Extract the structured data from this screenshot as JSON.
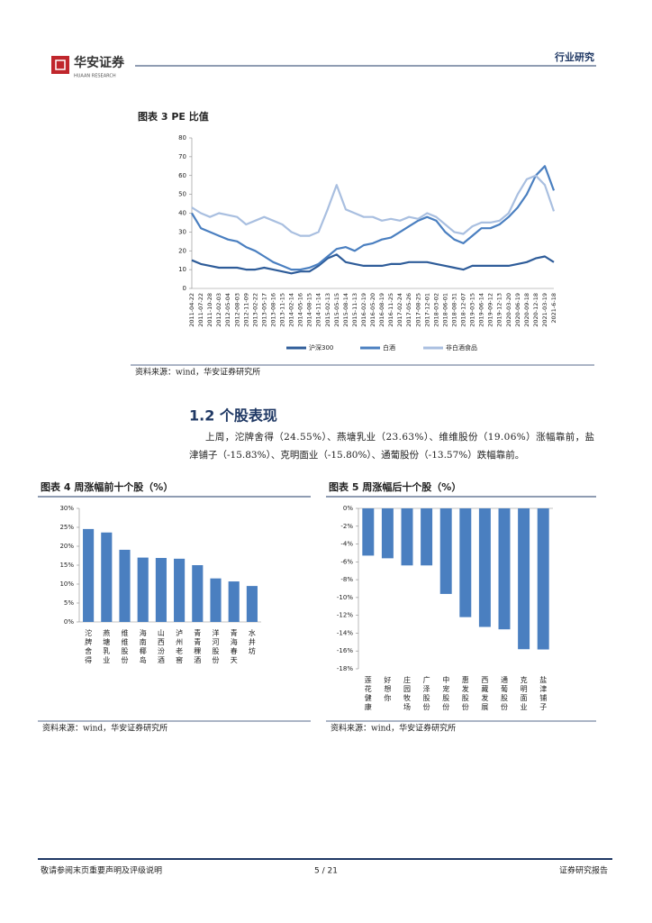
{
  "header": {
    "logo": "华安证券",
    "logo_sub": "HUAAN RESEARCH",
    "section": "行业研究"
  },
  "heading": "1.2 个股表现",
  "paragraph": [
    "上周，沱牌舍得（24.55%）、燕塘乳业（23.63%）、维维股份（19.06%）涨幅靠前，盐",
    "津铺子（-15.83%）、克明面业（-15.80%）、通葡股份（-13.57%）跌幅靠前。"
  ],
  "footer": {
    "left": "敬请参阅末页重要声明及评级说明",
    "page": "5 / 21",
    "right": "证券研究报告"
  },
  "chart_data": [
    {
      "type": "line",
      "title": "图表 3 PE 比值",
      "source": "资料来源：wind，华安证券研究所",
      "categories": [
        "2011-04-22",
        "2011-07-22",
        "2011-10-28",
        "2012-02-03",
        "2012-05-04",
        "2012-08-03",
        "2012-11-09",
        "2013-02-22",
        "2013-05-17",
        "2013-08-16",
        "2013-11-15",
        "2014-02-14",
        "2014-05-16",
        "2014-08-15",
        "2014-11-14",
        "2015-02-13",
        "2015-05-15",
        "2015-08-14",
        "2015-11-13",
        "2016-02-19",
        "2016-05-20",
        "2016-08-19",
        "2016-11-25",
        "2017-02-24",
        "2017-05-26",
        "2017-08-25",
        "2017-12-01",
        "2018-03-02",
        "2018-06-01",
        "2018-08-31",
        "2018-12-07",
        "2019-03-15",
        "2019-06-14",
        "2019-09-12",
        "2019-12-13",
        "2020-03-20",
        "2020-06-19",
        "2020-09-18",
        "2020-12-18",
        "2021-03-19",
        "2021-6-18"
      ],
      "series": [
        {
          "name": "沪深300",
          "color": "#2e5c99",
          "values": [
            15,
            13,
            12,
            11,
            11,
            11,
            10,
            10,
            11,
            10,
            9,
            8,
            9,
            9,
            12,
            16,
            18,
            14,
            13,
            12,
            12,
            12,
            13,
            13,
            14,
            14,
            14,
            13,
            12,
            11,
            10,
            12,
            12,
            12,
            12,
            12,
            13,
            14,
            16,
            17,
            14
          ]
        },
        {
          "name": "白酒",
          "color": "#4a7fc0",
          "values": [
            40,
            32,
            30,
            28,
            26,
            25,
            22,
            20,
            17,
            14,
            12,
            10,
            10,
            11,
            13,
            17,
            21,
            22,
            20,
            23,
            24,
            26,
            27,
            30,
            33,
            36,
            38,
            36,
            30,
            26,
            24,
            28,
            32,
            32,
            34,
            38,
            43,
            50,
            60,
            65,
            52
          ]
        },
        {
          "name": "非白酒食品",
          "color": "#a9bfe0",
          "values": [
            43,
            40,
            38,
            40,
            39,
            38,
            34,
            36,
            38,
            36,
            34,
            30,
            28,
            28,
            30,
            42,
            55,
            42,
            40,
            38,
            38,
            36,
            37,
            36,
            38,
            37,
            40,
            38,
            34,
            30,
            29,
            33,
            35,
            35,
            36,
            40,
            50,
            58,
            60,
            55,
            41
          ]
        }
      ],
      "ylim": [
        0,
        80
      ],
      "yticks": [
        0,
        10,
        20,
        30,
        40,
        50,
        60,
        70,
        80
      ],
      "legend": "bottom"
    },
    {
      "type": "bar",
      "title": "图表 4 周涨幅前十个股（%）",
      "source": "资料来源：wind，华安证券研究所",
      "color": "#4a7fc0",
      "categories": [
        "沱牌舍得",
        "燕塘乳业",
        "维维股份",
        "海南椰岛",
        "山西汾酒",
        "泸州老窖",
        "青青稞酒",
        "洋河股份",
        "青海春天",
        "水井坊"
      ],
      "values": [
        24.55,
        23.63,
        19.06,
        17.0,
        16.9,
        16.7,
        15.0,
        11.5,
        10.7,
        9.5
      ],
      "ylim": [
        0,
        30
      ],
      "yticks": [
        {
          "value": 0,
          "label": "0%"
        },
        {
          "value": 5,
          "label": "5%"
        },
        {
          "value": 10,
          "label": "10%"
        },
        {
          "value": 15,
          "label": "15%"
        },
        {
          "value": 20,
          "label": "20%"
        },
        {
          "value": 25,
          "label": "25%"
        },
        {
          "value": 30,
          "label": "30%"
        }
      ]
    },
    {
      "type": "bar",
      "title": "图表 5 周涨幅后十个股（%）",
      "source": "资料来源：wind，华安证券研究所",
      "color": "#4a7fc0",
      "categories": [
        "莲花健康",
        "好想你",
        "庄园牧场",
        "广泽股份",
        "中宠股份",
        "惠发股份",
        "西藏发展",
        "通葡股份",
        "克明面业",
        "盐津铺子"
      ],
      "values": [
        -5.3,
        -5.6,
        -6.4,
        -6.4,
        -9.6,
        -12.2,
        -13.3,
        -13.57,
        -15.8,
        -15.83
      ],
      "ylim": [
        -18,
        0
      ],
      "yticks": [
        {
          "value": 0,
          "label": "0%"
        },
        {
          "value": -2,
          "label": "-2%"
        },
        {
          "value": -4,
          "label": "-4%"
        },
        {
          "value": -6,
          "label": "-6%"
        },
        {
          "value": -8,
          "label": "-8%"
        },
        {
          "value": -10,
          "label": "-10%"
        },
        {
          "value": -12,
          "label": "-12%"
        },
        {
          "value": -14,
          "label": "-14%"
        },
        {
          "value": -16,
          "label": "-16%"
        },
        {
          "value": -18,
          "label": "-18%"
        }
      ]
    }
  ]
}
